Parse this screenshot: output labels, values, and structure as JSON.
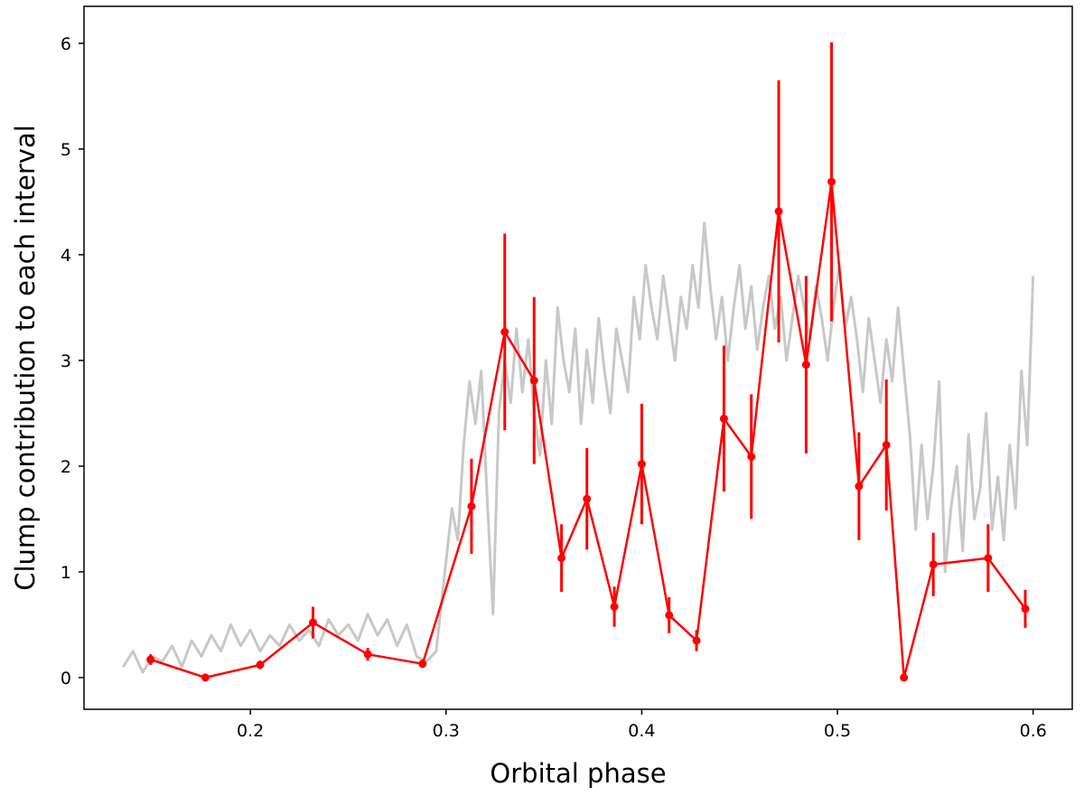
{
  "chart_data": {
    "type": "line",
    "title": "",
    "xlabel": "Orbital phase",
    "ylabel": "Clump contribution to each interval",
    "xlim": [
      0.115,
      0.62
    ],
    "ylim": [
      -0.3,
      6.35
    ],
    "xticks": [
      0.2,
      0.3,
      0.4,
      0.5,
      0.6
    ],
    "xtick_labels": [
      "0.2",
      "0.3",
      "0.4",
      "0.5",
      "0.6"
    ],
    "yticks": [
      0,
      1,
      2,
      3,
      4,
      5,
      6
    ],
    "ytick_labels": [
      "0",
      "1",
      "2",
      "3",
      "4",
      "5",
      "6"
    ],
    "grid": false,
    "series": [
      {
        "role": "background light curve",
        "color": "#c8c8c8",
        "style": "line",
        "x": [
          0.135,
          0.14,
          0.145,
          0.15,
          0.155,
          0.16,
          0.165,
          0.17,
          0.175,
          0.18,
          0.185,
          0.19,
          0.195,
          0.2,
          0.205,
          0.21,
          0.215,
          0.22,
          0.225,
          0.23,
          0.235,
          0.24,
          0.245,
          0.25,
          0.255,
          0.26,
          0.265,
          0.27,
          0.275,
          0.28,
          0.285,
          0.29,
          0.295,
          0.3,
          0.303,
          0.306,
          0.309,
          0.312,
          0.315,
          0.318,
          0.321,
          0.324,
          0.327,
          0.33,
          0.333,
          0.336,
          0.339,
          0.342,
          0.345,
          0.348,
          0.351,
          0.354,
          0.357,
          0.36,
          0.363,
          0.366,
          0.369,
          0.372,
          0.375,
          0.378,
          0.381,
          0.384,
          0.387,
          0.39,
          0.393,
          0.396,
          0.399,
          0.402,
          0.405,
          0.408,
          0.411,
          0.414,
          0.417,
          0.42,
          0.423,
          0.426,
          0.429,
          0.432,
          0.435,
          0.438,
          0.441,
          0.444,
          0.447,
          0.45,
          0.453,
          0.456,
          0.459,
          0.462,
          0.465,
          0.468,
          0.471,
          0.474,
          0.477,
          0.48,
          0.483,
          0.486,
          0.489,
          0.492,
          0.495,
          0.498,
          0.501,
          0.504,
          0.507,
          0.51,
          0.513,
          0.516,
          0.519,
          0.522,
          0.525,
          0.528,
          0.531,
          0.534,
          0.537,
          0.54,
          0.543,
          0.546,
          0.549,
          0.552,
          0.555,
          0.558,
          0.561,
          0.564,
          0.567,
          0.57,
          0.573,
          0.576,
          0.579,
          0.582,
          0.585,
          0.588,
          0.591,
          0.594,
          0.597,
          0.6
        ],
        "y": [
          0.1,
          0.25,
          0.05,
          0.2,
          0.15,
          0.3,
          0.1,
          0.35,
          0.2,
          0.4,
          0.25,
          0.5,
          0.3,
          0.45,
          0.25,
          0.4,
          0.3,
          0.5,
          0.35,
          0.45,
          0.3,
          0.55,
          0.4,
          0.5,
          0.35,
          0.6,
          0.4,
          0.55,
          0.3,
          0.5,
          0.2,
          0.15,
          0.25,
          1.1,
          1.6,
          1.3,
          2.2,
          2.8,
          2.4,
          2.9,
          1.7,
          0.6,
          2.5,
          3.0,
          2.6,
          3.3,
          2.7,
          3.2,
          2.5,
          2.1,
          3.0,
          2.4,
          3.5,
          3.0,
          2.7,
          3.3,
          2.4,
          3.1,
          2.6,
          3.4,
          2.9,
          2.5,
          3.3,
          3.0,
          2.7,
          3.6,
          3.2,
          3.9,
          3.5,
          3.2,
          3.8,
          3.4,
          3.0,
          3.6,
          3.3,
          3.9,
          3.5,
          4.3,
          3.7,
          3.2,
          3.6,
          3.0,
          3.5,
          3.9,
          3.3,
          3.7,
          3.1,
          3.5,
          3.8,
          3.3,
          3.6,
          3.0,
          3.4,
          3.8,
          3.5,
          3.2,
          3.7,
          3.4,
          3.0,
          3.5,
          3.9,
          3.3,
          3.6,
          3.2,
          2.7,
          3.4,
          3.0,
          2.6,
          3.2,
          2.8,
          3.5,
          2.9,
          2.3,
          1.4,
          2.2,
          1.5,
          2.0,
          2.8,
          1.0,
          1.6,
          2.0,
          1.2,
          2.3,
          1.5,
          1.8,
          2.5,
          1.4,
          1.9,
          1.3,
          2.2,
          1.6,
          2.9,
          2.2,
          3.8
        ]
      },
      {
        "role": "clump contribution",
        "color": "#ff0000",
        "style": "line-markers-errorbars",
        "x": [
          0.149,
          0.177,
          0.205,
          0.232,
          0.26,
          0.288,
          0.313,
          0.33,
          0.345,
          0.359,
          0.372,
          0.386,
          0.4,
          0.414,
          0.428,
          0.442,
          0.456,
          0.47,
          0.484,
          0.497,
          0.511,
          0.525,
          0.534,
          0.549,
          0.577,
          0.596
        ],
        "y": [
          0.17,
          0.0,
          0.12,
          0.52,
          0.22,
          0.13,
          1.62,
          3.27,
          2.81,
          1.13,
          1.69,
          0.67,
          2.02,
          0.59,
          0.35,
          2.45,
          2.09,
          4.41,
          2.96,
          4.69,
          1.81,
          2.2,
          0.0,
          1.07,
          1.13,
          0.65
        ],
        "yerr": [
          0.05,
          0.0,
          0.04,
          0.15,
          0.06,
          0.04,
          0.45,
          0.93,
          0.79,
          0.32,
          0.48,
          0.19,
          0.57,
          0.17,
          0.1,
          0.69,
          0.59,
          1.24,
          0.84,
          1.32,
          0.51,
          0.62,
          0.0,
          0.3,
          0.32,
          0.18
        ]
      }
    ]
  }
}
